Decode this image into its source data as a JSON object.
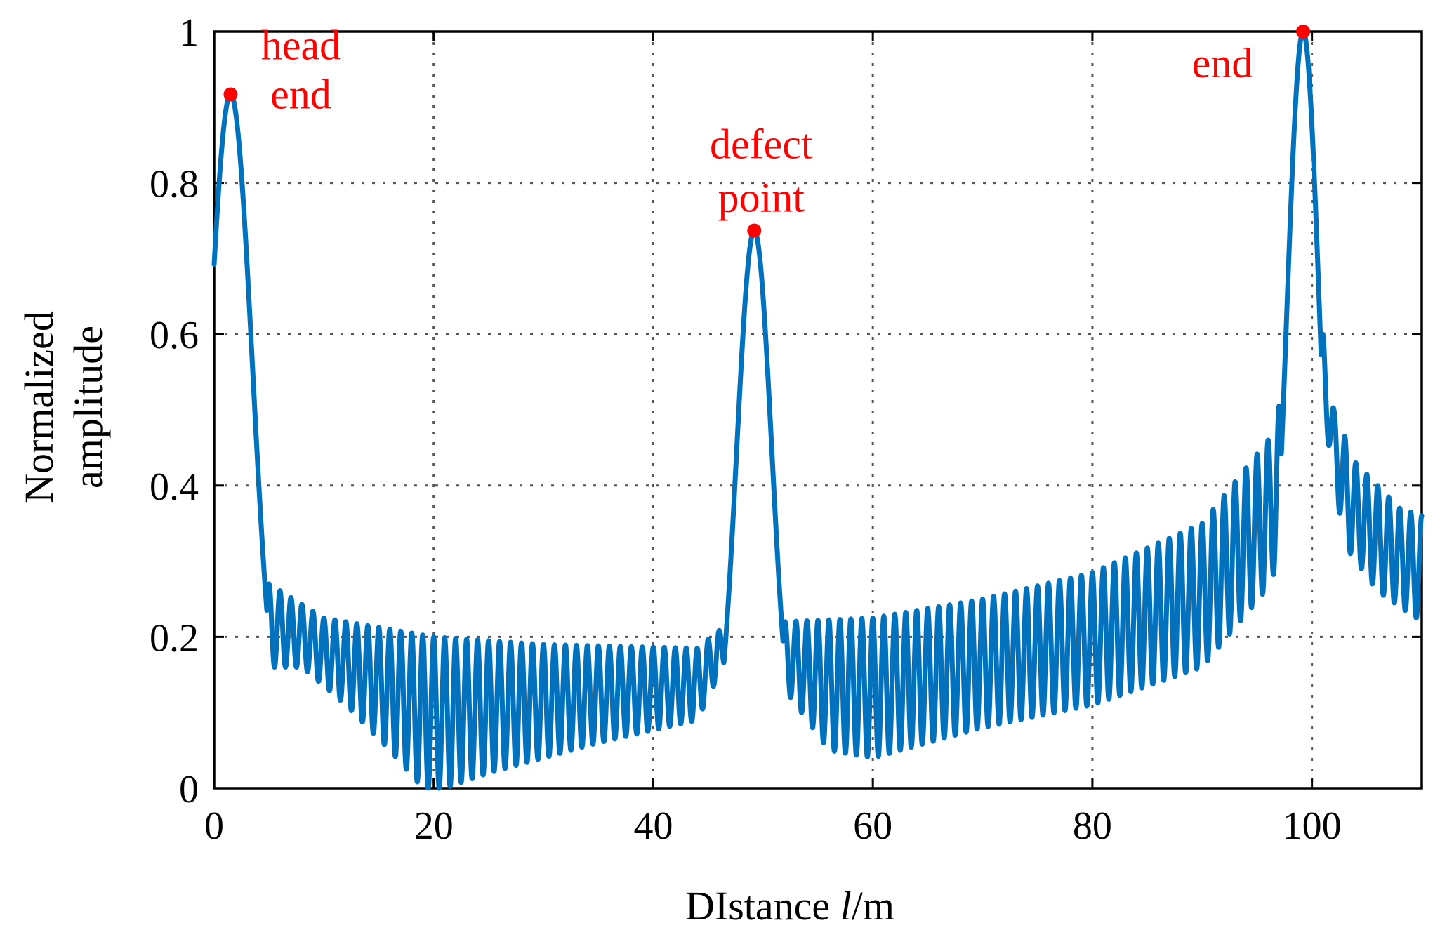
{
  "chart_data": {
    "type": "line",
    "title": "",
    "xlabel": {
      "prefix": "DIstance ",
      "italic": "l",
      "suffix": "/m"
    },
    "ylabel": [
      "Normalized",
      "amplitude"
    ],
    "xlim": [
      0,
      110
    ],
    "ylim": [
      0,
      1
    ],
    "xticks": [
      0,
      20,
      40,
      60,
      80,
      100
    ],
    "yticks": [
      0,
      0.2,
      0.4,
      0.6,
      0.8,
      1
    ],
    "xtick_labels": [
      "0",
      "20",
      "40",
      "60",
      "80",
      "100"
    ],
    "ytick_labels": [
      "0",
      "0.2",
      "0.4",
      "0.6",
      "0.8",
      "1"
    ],
    "grid": true,
    "series": [
      {
        "name": "normalized amplitude",
        "color": "#0072BD",
        "peaks": [
          {
            "x": 1.5,
            "y": 0.917,
            "width": 2.0
          },
          {
            "x": 49.2,
            "y": 0.737,
            "width": 1.6
          },
          {
            "x": 99.2,
            "y": 1.0,
            "width": 1.55
          }
        ],
        "ripple": {
          "period": 1.0,
          "envelope_top": [
            [
              5,
              0.27
            ],
            [
              10,
              0.225
            ],
            [
              20,
              0.2
            ],
            [
              30,
              0.19
            ],
            [
              44,
              0.185
            ],
            [
              47,
              0.22
            ],
            [
              52,
              0.22
            ],
            [
              60,
              0.225
            ],
            [
              70,
              0.25
            ],
            [
              80,
              0.285
            ],
            [
              90,
              0.35
            ],
            [
              96,
              0.46
            ],
            [
              98,
              0.55
            ],
            [
              101,
              0.6
            ],
            [
              102,
              0.5
            ],
            [
              104,
              0.43
            ],
            [
              108,
              0.37
            ],
            [
              110,
              0.36
            ]
          ],
          "envelope_bottom": [
            [
              5,
              0.16
            ],
            [
              8,
              0.16
            ],
            [
              12,
              0.11
            ],
            [
              16,
              0.05
            ],
            [
              19,
              0.0
            ],
            [
              21,
              0.0
            ],
            [
              25,
              0.02
            ],
            [
              35,
              0.06
            ],
            [
              44,
              0.09
            ],
            [
              47,
              0.18
            ],
            [
              52,
              0.13
            ],
            [
              56,
              0.05
            ],
            [
              60,
              0.04
            ],
            [
              70,
              0.08
            ],
            [
              80,
              0.11
            ],
            [
              90,
              0.16
            ],
            [
              96,
              0.265
            ],
            [
              97,
              0.3
            ],
            [
              101,
              0.5
            ],
            [
              103,
              0.32
            ],
            [
              106,
              0.26
            ],
            [
              110,
              0.22
            ]
          ]
        }
      }
    ],
    "annotations": [
      {
        "lines": [
          "head",
          "end"
        ],
        "x": 1.5,
        "y": 0.917,
        "color": "#FF0000"
      },
      {
        "lines": [
          "defect",
          "point"
        ],
        "x": 49.2,
        "y": 0.737,
        "color": "#FF0000"
      },
      {
        "lines": [
          "end"
        ],
        "x": 99.2,
        "y": 1.0,
        "color": "#FF0000"
      }
    ]
  }
}
